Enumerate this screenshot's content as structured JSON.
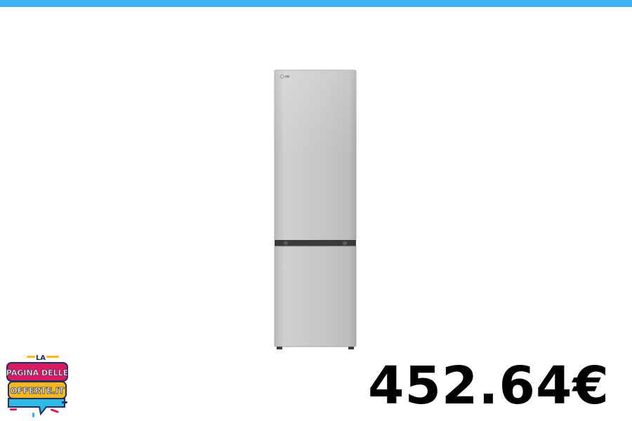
{
  "colors": {
    "top_bar": "#3fb3f2",
    "fridge_body": "#c9c9cb",
    "fridge_divider": "#3a3a3a",
    "logo_magenta": "#d81b60",
    "logo_yellow": "#fbb817",
    "logo_cyan": "#2fb8e6",
    "logo_navy": "#21305e"
  },
  "product": {
    "image_icon": "refrigerator-icon",
    "brand_mark": "lg-logo-icon"
  },
  "logo": {
    "line1": "LA",
    "line2": "PAGINA DELLE",
    "line3": "OFFERTE.IT"
  },
  "price": {
    "text": "452.64€"
  }
}
